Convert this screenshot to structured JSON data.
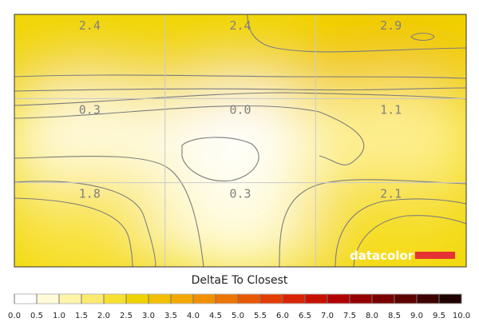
{
  "chart_data": {
    "type": "heatmap",
    "title": "DeltaE To Closest",
    "grid": {
      "rows": 3,
      "cols": 3
    },
    "values": [
      [
        2.4,
        2.4,
        2.9
      ],
      [
        0.3,
        0.0,
        1.1
      ],
      [
        1.8,
        0.3,
        2.1
      ]
    ],
    "colorbar": {
      "min": 0.0,
      "max": 10.0,
      "ticks": [
        "0.0",
        "0.5",
        "1.0",
        "1.5",
        "2.0",
        "2.5",
        "3.0",
        "3.5",
        "4.0",
        "4.5",
        "5.0",
        "5.5",
        "6.0",
        "6.5",
        "7.0",
        "7.5",
        "8.0",
        "8.5",
        "9.0",
        "9.5",
        "10.0"
      ],
      "colors": [
        "#ffffff",
        "#fffbd8",
        "#fff4a8",
        "#fcea70",
        "#f7e02f",
        "#f0d200",
        "#f2bf00",
        "#f3a800",
        "#f19000",
        "#ec7400",
        "#e85800",
        "#e23c00",
        "#d82400",
        "#c81000",
        "#b00000",
        "#950000",
        "#7a0000",
        "#5c0000",
        "#3e0000",
        "#1e0000"
      ]
    },
    "grid_lines": true
  },
  "branding": {
    "logo_text": "datacolor",
    "logo_color": "#e53232"
  }
}
